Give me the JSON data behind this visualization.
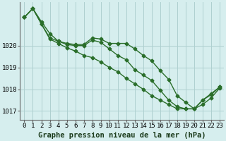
{
  "xlabel": "Graphe pression niveau de la mer (hPa)",
  "hours": [
    0,
    1,
    2,
    3,
    4,
    5,
    6,
    7,
    8,
    9,
    10,
    11,
    12,
    13,
    14,
    15,
    16,
    17,
    18,
    19,
    20,
    21,
    22,
    23
  ],
  "line1": [
    1021.3,
    1021.7,
    1021.1,
    1020.55,
    1020.2,
    1020.05,
    1020.0,
    1020.0,
    1020.25,
    1020.15,
    1019.85,
    1019.55,
    1019.35,
    1018.9,
    1018.65,
    1018.4,
    1017.95,
    1017.5,
    1017.2,
    1017.1,
    1017.1,
    1017.5,
    1017.75,
    1018.1
  ],
  "line2": [
    1021.3,
    1021.7,
    1021.0,
    1020.35,
    1020.2,
    1020.1,
    1020.05,
    1020.05,
    1020.35,
    1020.3,
    1020.1,
    1020.1,
    1020.1,
    1019.85,
    1019.55,
    1019.3,
    1018.85,
    1018.45,
    1017.7,
    1017.4,
    1017.1,
    1017.5,
    1017.8,
    1018.1
  ],
  "line3": [
    1021.3,
    1021.7,
    1021.0,
    1020.3,
    1020.1,
    1019.9,
    1019.75,
    1019.55,
    1019.45,
    1019.25,
    1019.0,
    1018.8,
    1018.5,
    1018.25,
    1018.0,
    1017.7,
    1017.5,
    1017.3,
    1017.1,
    1017.1,
    1017.1,
    1017.3,
    1017.6,
    1018.05
  ],
  "ylim": [
    1016.6,
    1022.0
  ],
  "yticks": [
    1017,
    1018,
    1019,
    1020
  ],
  "bg_color": "#d6eeee",
  "grid_color": "#aed0d0",
  "line_color": "#2a6e2a",
  "marker": "D",
  "marker_size": 2.5,
  "line_width": 1.0,
  "xlabel_fontsize": 7.5,
  "tick_fontsize": 6.5
}
